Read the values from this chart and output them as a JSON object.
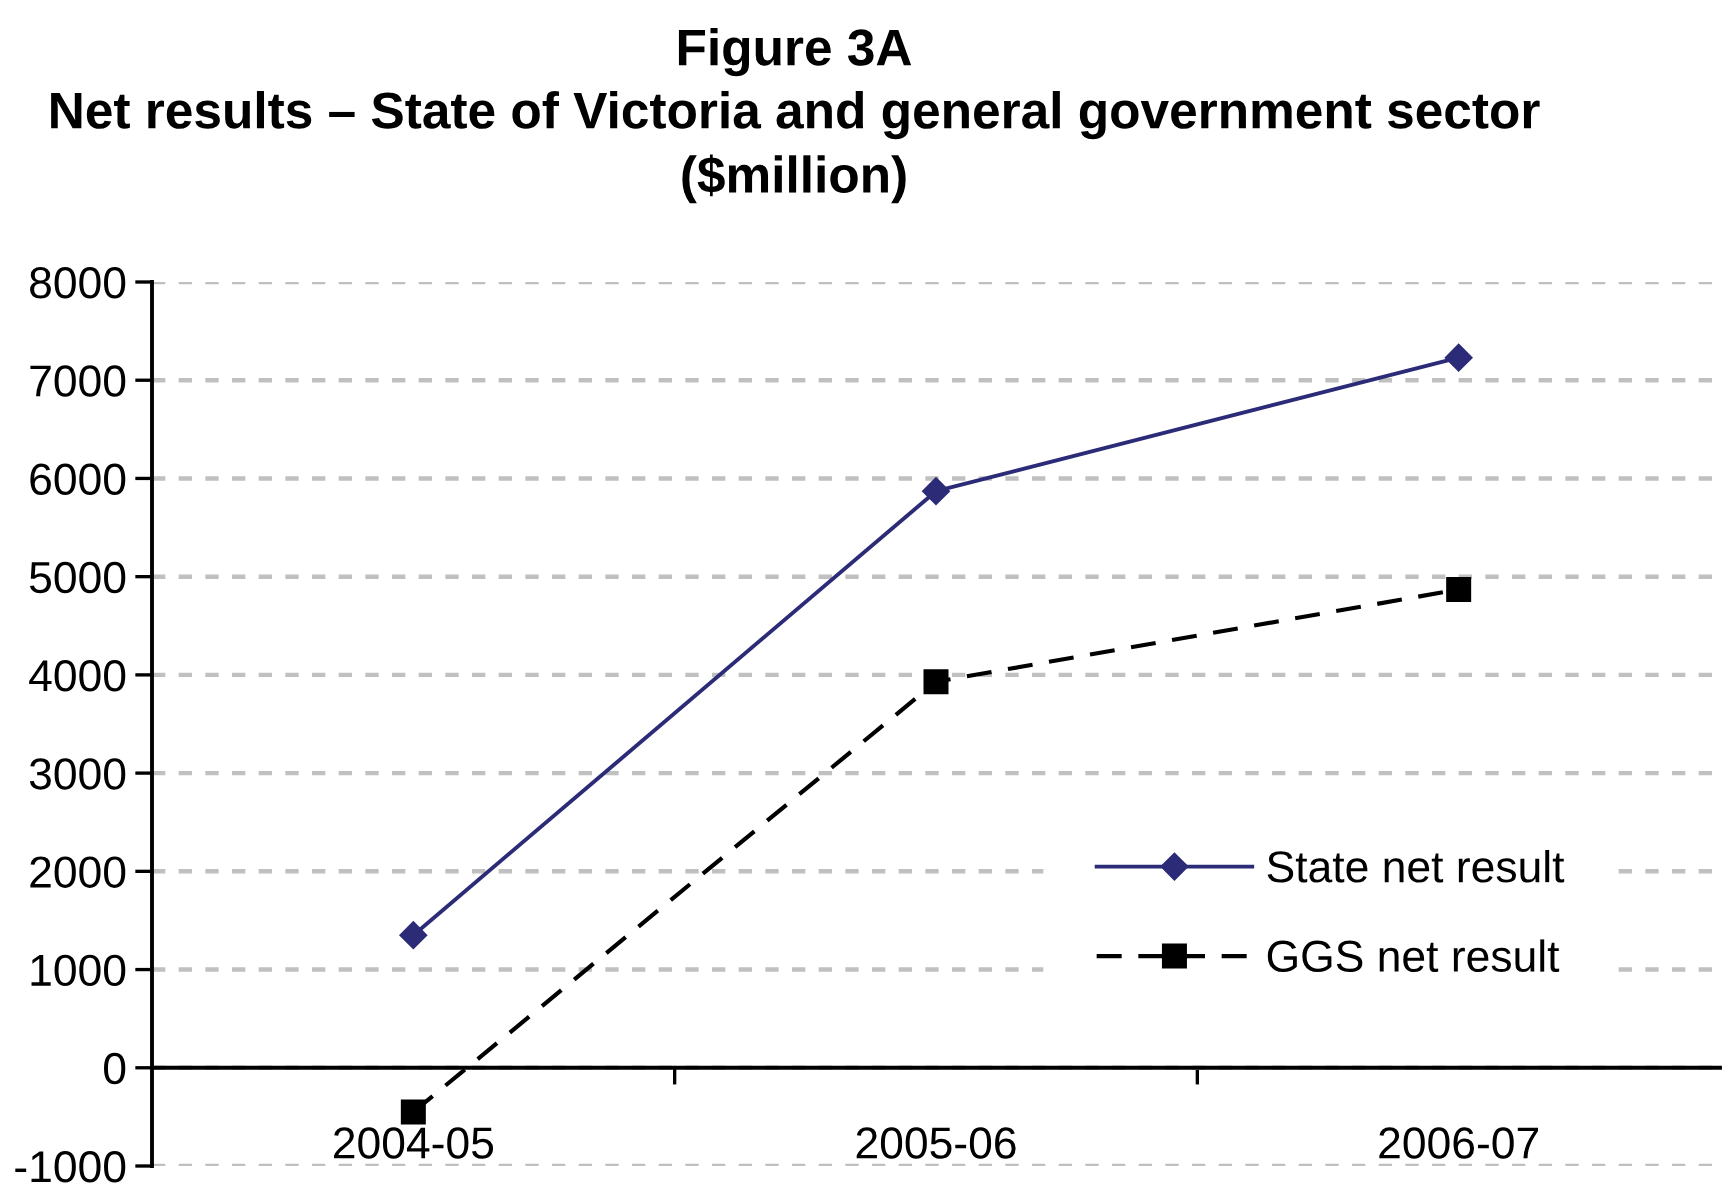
{
  "chart_data": {
    "type": "line",
    "title": "Figure 3A\nNet results – State of Victoria and general government sector\n($million)",
    "categories": [
      "2004-05",
      "2005-06",
      "2006-07"
    ],
    "series": [
      {
        "name": "State net result",
        "color": "#2b2b78",
        "values": [
          1350,
          5870,
          7230
        ],
        "marker": "diamond",
        "line_style": "solid"
      },
      {
        "name": "GGS net result",
        "color": "#000000",
        "values": [
          -450,
          3930,
          4870
        ],
        "marker": "square",
        "line_style": "dashed"
      }
    ],
    "ylim": [
      -1000,
      8000
    ],
    "yticks": [
      -1000,
      0,
      1000,
      2000,
      3000,
      4000,
      5000,
      6000,
      7000,
      8000
    ],
    "grid": "y",
    "legend": "bottom right"
  }
}
